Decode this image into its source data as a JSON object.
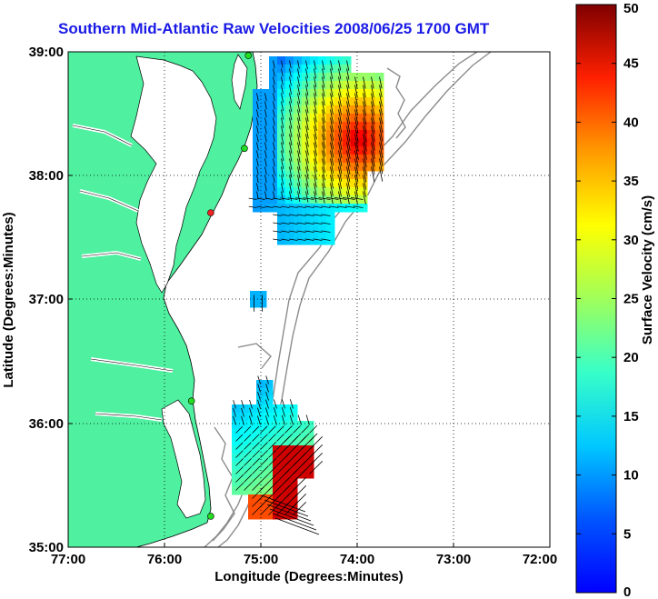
{
  "title": "Southern Mid-Atlantic Raw Velocities 2008/06/25 1700 GMT",
  "map": {
    "xlabel": "Longitude (Degrees:Minutes)",
    "ylabel": "Latitude (Degrees:Minutes)",
    "x_ticks": [
      "77:00",
      "76:00",
      "75:00",
      "74:00",
      "73:00",
      "72:00"
    ],
    "y_ticks": [
      "39:00",
      "38:00",
      "37:00",
      "36:00",
      "35:00"
    ],
    "lon_range": [
      -77,
      -72
    ],
    "lat_range": [
      35,
      39
    ],
    "land_color": "#4ff0a0",
    "grid": "dotted",
    "stations": [
      {
        "lon": -75.13,
        "lat": 38.97,
        "color": "#22dd22"
      },
      {
        "lon": -75.17,
        "lat": 38.22,
        "color": "#22dd22"
      },
      {
        "lon": -75.52,
        "lat": 37.7,
        "color": "#ee2222"
      },
      {
        "lon": -75.72,
        "lat": 36.18,
        "color": "#22dd22"
      },
      {
        "lon": -75.52,
        "lat": 35.25,
        "color": "#22dd22"
      }
    ]
  },
  "colorbar": {
    "label": "Surface Velocity (cm/s)",
    "ticks": [
      "0",
      "5",
      "10",
      "15",
      "20",
      "25",
      "30",
      "35",
      "40",
      "45",
      "50"
    ],
    "range": [
      0,
      50
    ],
    "colormap": "jet"
  }
}
